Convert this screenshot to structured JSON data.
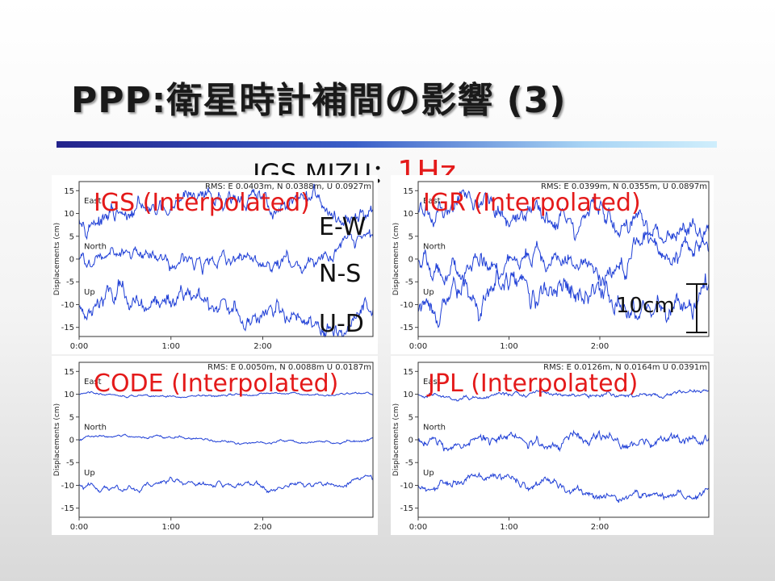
{
  "title": "PPP:衛星時計補間の影響 (3)",
  "subtitle": {
    "station": "IGS MIZU：",
    "rate": "1Hz"
  },
  "components": [
    "E-W",
    "N-S",
    "U-D"
  ],
  "scale_label": "10cm",
  "colors": {
    "accent": "#e41a1a",
    "series": "#1f3fd6",
    "rule_start": "#23238c",
    "rule_end": "#cfeefc"
  },
  "chart_data": [
    {
      "type": "line",
      "label": "IGS (Interpolated)",
      "rms": "RMS: E 0.0403m, N 0.0388m, U 0.0927m",
      "ylabel": "Displacements (cm)",
      "ylim": [
        -17,
        17
      ],
      "yticks": [
        15,
        10,
        5,
        0,
        -5,
        -10,
        -15
      ],
      "xticks": [
        "0:00",
        "1:00",
        "2:00"
      ],
      "x_range_hours": [
        0,
        3.2
      ],
      "series": [
        {
          "name": "East",
          "offset": 10,
          "amplitude": 6.5
        },
        {
          "name": "North",
          "offset": 0,
          "amplitude": 6.5
        },
        {
          "name": "Up",
          "offset": -10,
          "amplitude": 7.5
        }
      ]
    },
    {
      "type": "line",
      "label": "IGR (Interpolated)",
      "rms": "RMS: E 0.0399m, N 0.0355m, U 0.0897m",
      "ylabel": "Displacements (cm)",
      "ylim": [
        -17,
        17
      ],
      "yticks": [
        15,
        10,
        5,
        0,
        -5,
        -10,
        -15
      ],
      "xticks": [
        "0:00",
        "1:00",
        "2:00"
      ],
      "x_range_hours": [
        0,
        3.2
      ],
      "series": [
        {
          "name": "East",
          "offset": 10,
          "amplitude": 6.5
        },
        {
          "name": "North",
          "offset": 0,
          "amplitude": 6.0
        },
        {
          "name": "Up",
          "offset": -10,
          "amplitude": 7.5
        }
      ]
    },
    {
      "type": "line",
      "label": "CODE (Interpolated)",
      "rms": "RMS: E 0.0050m, N 0.0088m U 0.0187m",
      "ylabel": "Displacements (cm)",
      "ylim": [
        -17,
        17
      ],
      "yticks": [
        15,
        10,
        5,
        0,
        -5,
        -10,
        -15
      ],
      "xticks": [
        "0:00",
        "1:00",
        "2:00"
      ],
      "x_range_hours": [
        0,
        3.2
      ],
      "series": [
        {
          "name": "East",
          "offset": 10,
          "amplitude": 0.8
        },
        {
          "name": "North",
          "offset": 0,
          "amplitude": 1.2
        },
        {
          "name": "Up",
          "offset": -10,
          "amplitude": 2.2
        }
      ]
    },
    {
      "type": "line",
      "label": "JPL  (Interpolated)",
      "rms": "RMS: E 0.0126m, N 0.0164m U 0.0391m",
      "ylabel": "Displacements (cm)",
      "ylim": [
        -17,
        17
      ],
      "yticks": [
        15,
        10,
        5,
        0,
        -5,
        -10,
        -15
      ],
      "xticks": [
        "0:00",
        "1:00",
        "2:00"
      ],
      "x_range_hours": [
        0,
        3.2
      ],
      "series": [
        {
          "name": "East",
          "offset": 10,
          "amplitude": 1.5
        },
        {
          "name": "North",
          "offset": 0,
          "amplitude": 2.5
        },
        {
          "name": "Up",
          "offset": -10,
          "amplitude": 3.8
        }
      ]
    }
  ]
}
